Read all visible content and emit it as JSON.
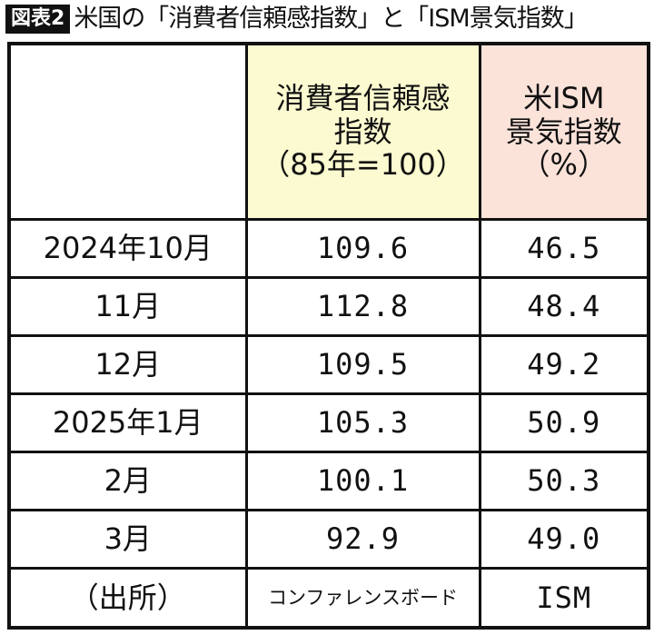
{
  "title": {
    "figure_label": "図表2",
    "text": "米国の「消費者信頼感指数」と「ISM景気指数」"
  },
  "table": {
    "headers": {
      "period": "",
      "cci": [
        "消費者信頼感",
        "指数",
        "（85年=100）"
      ],
      "ism": [
        "米ISM",
        "景気指数",
        "（%）"
      ]
    },
    "rows": [
      {
        "period": "2024年10月",
        "cci": "109.6",
        "ism": "46.5"
      },
      {
        "period": "11月",
        "cci": "112.8",
        "ism": "48.4"
      },
      {
        "period": "12月",
        "cci": "109.5",
        "ism": "49.2"
      },
      {
        "period": "2025年1月",
        "cci": "105.3",
        "ism": "50.9"
      },
      {
        "period": "2月",
        "cci": "100.1",
        "ism": "50.3"
      },
      {
        "period": "3月",
        "cci": "92.9",
        "ism": "49.0"
      }
    ],
    "source": {
      "label": "（出所）",
      "cci": "コンファレンスボード",
      "ism": "ISM"
    }
  },
  "colors": {
    "cci_header_bg": "#fcfad0",
    "ism_header_bg": "#fbe3da",
    "border": "#111111"
  },
  "chart_data": {
    "type": "table",
    "title": "米国の「消費者信頼感指数」と「ISM景気指数」",
    "categories": [
      "2024年10月",
      "11月",
      "12月",
      "2025年1月",
      "2月",
      "3月"
    ],
    "series": [
      {
        "name": "消費者信頼感指数（85年=100）",
        "values": [
          109.6,
          112.8,
          109.5,
          105.3,
          100.1,
          92.9
        ],
        "source": "コンファレンスボード"
      },
      {
        "name": "米ISM景気指数（%）",
        "values": [
          46.5,
          48.4,
          49.2,
          50.9,
          50.3,
          49.0
        ],
        "source": "ISM"
      }
    ]
  }
}
